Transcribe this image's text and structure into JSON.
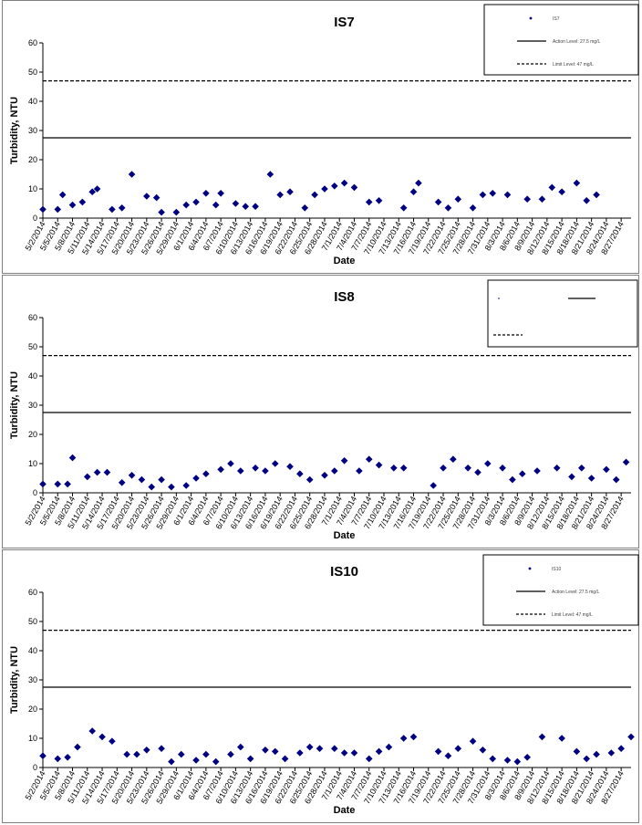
{
  "chart_data": [
    {
      "type": "scatter",
      "title": "IS7",
      "xlabel": "Date",
      "ylabel": "Turbidity, NTU",
      "ylim": [
        0,
        60
      ],
      "yticks": [
        0,
        10,
        20,
        30,
        40,
        50,
        60
      ],
      "xlim": [
        "5/2/2014",
        "8/29/2014"
      ],
      "xticks": [
        "5/2/2014",
        "5/5/2014",
        "5/8/2014",
        "5/11/2014",
        "5/14/2014",
        "5/17/2014",
        "5/20/2014",
        "5/23/2014",
        "5/26/2014",
        "5/29/2014",
        "6/1/2014",
        "6/4/2014",
        "6/7/2014",
        "6/10/2014",
        "6/13/2014",
        "6/16/2014",
        "6/19/2014",
        "6/22/2014",
        "6/25/2014",
        "6/28/2014",
        "7/1/2014",
        "7/4/2014",
        "7/7/2014",
        "7/10/2014",
        "7/13/2014",
        "7/16/2014",
        "7/19/2014",
        "7/22/2014",
        "7/25/2014",
        "7/28/2014",
        "7/31/2014",
        "8/3/2014",
        "8/6/2014",
        "8/9/2014",
        "8/12/2014",
        "8/15/2014",
        "8/18/2014",
        "8/21/2014",
        "8/24/2014",
        "8/27/2014"
      ],
      "legend_position": "top-right",
      "legend": [
        "IS7",
        "Action Level: 27.5 mg/L",
        "Limit Level: 47 mg/L"
      ],
      "marker_color": "#000080",
      "hlines": [
        {
          "value": 27.5,
          "style": "solid"
        },
        {
          "value": 47,
          "style": "dashed"
        }
      ],
      "series": [
        {
          "name": "IS7",
          "points": [
            [
              "5/2/2014",
              3
            ],
            [
              "5/5/2014",
              3
            ],
            [
              "5/6/2014",
              8
            ],
            [
              "5/8/2014",
              4.5
            ],
            [
              "5/10/2014",
              5.5
            ],
            [
              "5/12/2014",
              9
            ],
            [
              "5/13/2014",
              10
            ],
            [
              "5/16/2014",
              3
            ],
            [
              "5/18/2014",
              3.5
            ],
            [
              "5/20/2014",
              15
            ],
            [
              "5/23/2014",
              7.5
            ],
            [
              "5/25/2014",
              7
            ],
            [
              "5/26/2014",
              2
            ],
            [
              "5/29/2014",
              2
            ],
            [
              "5/31/2014",
              4.5
            ],
            [
              "6/2/2014",
              5.5
            ],
            [
              "6/4/2014",
              8.5
            ],
            [
              "6/6/2014",
              4.5
            ],
            [
              "6/7/2014",
              8.5
            ],
            [
              "6/10/2014",
              5
            ],
            [
              "6/12/2014",
              4
            ],
            [
              "6/14/2014",
              4
            ],
            [
              "6/17/2014",
              15
            ],
            [
              "6/19/2014",
              8
            ],
            [
              "6/21/2014",
              9
            ],
            [
              "6/24/2014",
              3.5
            ],
            [
              "6/26/2014",
              8
            ],
            [
              "6/28/2014",
              10
            ],
            [
              "6/30/2014",
              11
            ],
            [
              "7/2/2014",
              12
            ],
            [
              "7/4/2014",
              10.5
            ],
            [
              "7/7/2014",
              5.5
            ],
            [
              "7/9/2014",
              6
            ],
            [
              "7/14/2014",
              3.5
            ],
            [
              "7/16/2014",
              9
            ],
            [
              "7/17/2014",
              12
            ],
            [
              "7/21/2014",
              5.5
            ],
            [
              "7/23/2014",
              3.5
            ],
            [
              "7/25/2014",
              6.5
            ],
            [
              "7/28/2014",
              3.5
            ],
            [
              "7/30/2014",
              8
            ],
            [
              "8/1/2014",
              8.5
            ],
            [
              "8/4/2014",
              8
            ],
            [
              "8/8/2014",
              6.5
            ],
            [
              "8/11/2014",
              6.5
            ],
            [
              "8/13/2014",
              10.5
            ],
            [
              "8/15/2014",
              9
            ],
            [
              "8/18/2014",
              12
            ],
            [
              "8/20/2014",
              6
            ],
            [
              "8/22/2014",
              8
            ]
          ]
        }
      ]
    },
    {
      "type": "scatter",
      "title": "IS8",
      "xlabel": "Date",
      "ylabel": "Turbidity, NTU",
      "ylim": [
        0,
        60
      ],
      "yticks": [
        0,
        10,
        20,
        30,
        40,
        50,
        60
      ],
      "xlim": [
        "5/2/2014",
        "8/29/2014"
      ],
      "xticks": [
        "5/2/2014",
        "5/5/2014",
        "5/8/2014",
        "5/11/2014",
        "5/14/2014",
        "5/17/2014",
        "5/20/2014",
        "5/23/2014",
        "5/26/2014",
        "5/29/2014",
        "6/1/2014",
        "6/4/2014",
        "6/7/2014",
        "6/10/2014",
        "6/13/2014",
        "6/16/2014",
        "6/19/2014",
        "6/22/2014",
        "6/25/2014",
        "6/28/2014",
        "7/1/2014",
        "7/4/2014",
        "7/7/2014",
        "7/10/2014",
        "7/13/2014",
        "7/16/2014",
        "7/19/2014",
        "7/22/2014",
        "7/25/2014",
        "7/28/2014",
        "7/31/2014",
        "8/3/2014",
        "8/6/2014",
        "8/9/2014",
        "8/12/2014",
        "8/15/2014",
        "8/18/2014",
        "8/21/2014",
        "8/24/2014",
        "8/27/2014"
      ],
      "legend_position": "top-right",
      "legend": [],
      "marker_color": "#000080",
      "hlines": [
        {
          "value": 27.5,
          "style": "solid"
        },
        {
          "value": 47,
          "style": "dashed"
        }
      ],
      "series": [
        {
          "name": "",
          "points": [
            [
              "5/2/2014",
              3
            ],
            [
              "5/5/2014",
              3
            ],
            [
              "5/7/2014",
              3
            ],
            [
              "5/8/2014",
              12
            ],
            [
              "5/11/2014",
              5.5
            ],
            [
              "5/13/2014",
              7
            ],
            [
              "5/15/2014",
              7
            ],
            [
              "5/18/2014",
              3.5
            ],
            [
              "5/20/2014",
              6
            ],
            [
              "5/22/2014",
              4.5
            ],
            [
              "5/24/2014",
              2
            ],
            [
              "5/26/2014",
              4.5
            ],
            [
              "5/28/2014",
              2
            ],
            [
              "5/31/2014",
              2.5
            ],
            [
              "6/2/2014",
              5
            ],
            [
              "6/4/2014",
              6.5
            ],
            [
              "6/7/2014",
              8
            ],
            [
              "6/9/2014",
              10
            ],
            [
              "6/11/2014",
              7.5
            ],
            [
              "6/14/2014",
              8.5
            ],
            [
              "6/16/2014",
              7.5
            ],
            [
              "6/18/2014",
              10
            ],
            [
              "6/21/2014",
              9
            ],
            [
              "6/23/2014",
              6.5
            ],
            [
              "6/25/2014",
              4.5
            ],
            [
              "6/28/2014",
              6
            ],
            [
              "6/30/2014",
              7.5
            ],
            [
              "7/2/2014",
              11
            ],
            [
              "7/5/2014",
              7.5
            ],
            [
              "7/7/2014",
              11.5
            ],
            [
              "7/9/2014",
              9.5
            ],
            [
              "7/12/2014",
              8.5
            ],
            [
              "7/14/2014",
              8.5
            ],
            [
              "7/20/2014",
              2.5
            ],
            [
              "7/22/2014",
              8.5
            ],
            [
              "7/24/2014",
              11.5
            ],
            [
              "7/27/2014",
              8.5
            ],
            [
              "7/29/2014",
              7
            ],
            [
              "7/31/2014",
              10
            ],
            [
              "8/3/2014",
              8.5
            ],
            [
              "8/5/2014",
              4.5
            ],
            [
              "8/7/2014",
              6.5
            ],
            [
              "8/10/2014",
              7.5
            ],
            [
              "8/14/2014",
              8.5
            ],
            [
              "8/17/2014",
              5.5
            ],
            [
              "8/19/2014",
              8.5
            ],
            [
              "8/21/2014",
              5
            ],
            [
              "8/24/2014",
              8
            ],
            [
              "8/26/2014",
              4.5
            ],
            [
              "8/28/2014",
              10.5
            ]
          ]
        }
      ]
    },
    {
      "type": "scatter",
      "title": "IS10",
      "xlabel": "Date",
      "ylabel": "Turbidity, NTU",
      "ylim": [
        0,
        60
      ],
      "yticks": [
        0,
        10,
        20,
        30,
        40,
        50,
        60
      ],
      "xlim": [
        "5/2/2014",
        "8/29/2014"
      ],
      "xticks": [
        "5/2/2014",
        "5/5/2014",
        "5/8/2014",
        "5/11/2014",
        "5/14/2014",
        "5/17/2014",
        "5/20/2014",
        "5/23/2014",
        "5/26/2014",
        "5/29/2014",
        "6/1/2014",
        "6/4/2014",
        "6/7/2014",
        "6/10/2014",
        "6/13/2014",
        "6/16/2014",
        "6/19/2014",
        "6/22/2014",
        "6/25/2014",
        "6/28/2014",
        "7/1/2014",
        "7/4/2014",
        "7/7/2014",
        "7/10/2014",
        "7/13/2014",
        "7/16/2014",
        "7/19/2014",
        "7/22/2014",
        "7/25/2014",
        "7/28/2014",
        "7/31/2014",
        "8/3/2014",
        "8/6/2014",
        "8/9/2014",
        "8/12/2014",
        "8/15/2014",
        "8/18/2014",
        "8/21/2014",
        "8/24/2014",
        "8/27/2014"
      ],
      "legend_position": "top-right",
      "legend": [
        "IS10",
        "Action Level: 27.5 mg/L",
        "Limit Level: 47 mg/L"
      ],
      "marker_color": "#000080",
      "hlines": [
        {
          "value": 27.5,
          "style": "solid"
        },
        {
          "value": 47,
          "style": "dashed"
        }
      ],
      "series": [
        {
          "name": "IS10",
          "points": [
            [
              "5/2/2014",
              4
            ],
            [
              "5/5/2014",
              3
            ],
            [
              "5/7/2014",
              3.5
            ],
            [
              "5/9/2014",
              7
            ],
            [
              "5/12/2014",
              12.5
            ],
            [
              "5/14/2014",
              10.5
            ],
            [
              "5/16/2014",
              9
            ],
            [
              "5/19/2014",
              4.5
            ],
            [
              "5/21/2014",
              4.5
            ],
            [
              "5/23/2014",
              6
            ],
            [
              "5/26/2014",
              6.5
            ],
            [
              "5/28/2014",
              2
            ],
            [
              "5/30/2014",
              4.5
            ],
            [
              "6/2/2014",
              2.5
            ],
            [
              "6/4/2014",
              4.5
            ],
            [
              "6/6/2014",
              2
            ],
            [
              "6/9/2014",
              4.5
            ],
            [
              "6/11/2014",
              7
            ],
            [
              "6/13/2014",
              3
            ],
            [
              "6/16/2014",
              6
            ],
            [
              "6/18/2014",
              5.5
            ],
            [
              "6/20/2014",
              3
            ],
            [
              "6/23/2014",
              5
            ],
            [
              "6/25/2014",
              7
            ],
            [
              "6/27/2014",
              6.5
            ],
            [
              "6/30/2014",
              6.5
            ],
            [
              "7/2/2014",
              5
            ],
            [
              "7/4/2014",
              5
            ],
            [
              "7/7/2014",
              3
            ],
            [
              "7/9/2014",
              5.5
            ],
            [
              "7/11/2014",
              7
            ],
            [
              "7/14/2014",
              10
            ],
            [
              "7/16/2014",
              10.5
            ],
            [
              "7/21/2014",
              5.5
            ],
            [
              "7/23/2014",
              4
            ],
            [
              "7/25/2014",
              6.5
            ],
            [
              "7/28/2014",
              9
            ],
            [
              "7/30/2014",
              6
            ],
            [
              "8/1/2014",
              3
            ],
            [
              "8/4/2014",
              2.5
            ],
            [
              "8/6/2014",
              2
            ],
            [
              "8/8/2014",
              3.5
            ],
            [
              "8/11/2014",
              10.5
            ],
            [
              "8/15/2014",
              10
            ],
            [
              "8/18/2014",
              5.5
            ],
            [
              "8/20/2014",
              3
            ],
            [
              "8/22/2014",
              4.5
            ],
            [
              "8/25/2014",
              5
            ],
            [
              "8/27/2014",
              6.5
            ],
            [
              "8/29/2014",
              10.5
            ]
          ]
        }
      ]
    }
  ]
}
